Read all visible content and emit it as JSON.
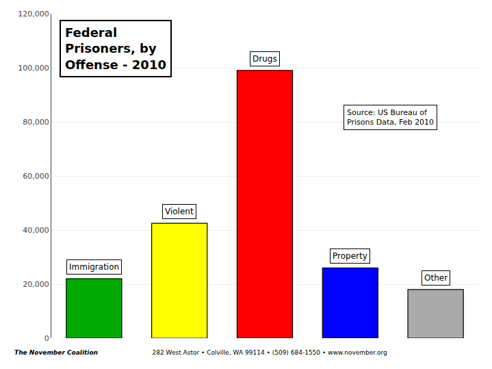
{
  "chart_data": {
    "type": "bar",
    "title": "Federal\nPrisoners, by\nOffense - 2010",
    "categories": [
      "Immigration",
      "Violent",
      "Drugs",
      "Property",
      "Other"
    ],
    "values": [
      22000,
      42500,
      99000,
      26000,
      18000
    ],
    "colors": [
      "#00aa00",
      "#ffff00",
      "#ff0000",
      "#0000ff",
      "#aaaaaa"
    ],
    "ylim": [
      0,
      120000
    ],
    "yticks": [
      0,
      {
        "value": 20000,
        "label": "20,000"
      },
      {
        "value": 40000,
        "label": "40,000"
      },
      {
        "value": 60000,
        "label": "60,000"
      },
      {
        "value": 80000,
        "label": "80,000"
      },
      {
        "value": 100000,
        "label": "100,000"
      },
      {
        "value": 120000,
        "label": "120,000"
      }
    ],
    "grid": true,
    "tick_labels": "y",
    "annotations": [
      "Source: US Bureau of\nPrisons Data, Feb 2010",
      "The November Coalition",
      "   282 West Astor • Colville, WA 99114 • (509) 684-1550 • www.november.org"
    ]
  }
}
